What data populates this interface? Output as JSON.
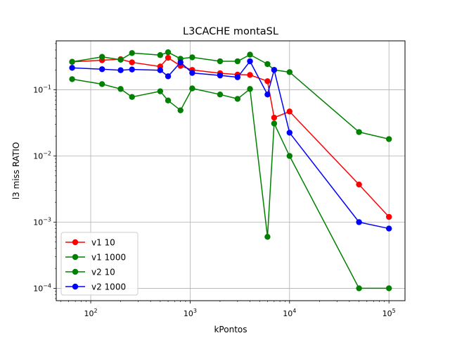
{
  "chart_data": {
    "type": "line",
    "title": "L3CACHE montaSL",
    "xlabel": "kPontos",
    "ylabel": "l3 miss RATIO",
    "xscale": "log",
    "yscale": "log",
    "xlim": [
      45,
      145000
    ],
    "ylim": [
      6.5e-05,
      0.55
    ],
    "grid": true,
    "legend_position": "lower-left",
    "x_ticks": [
      {
        "value": 100,
        "base": "10",
        "exp": "2"
      },
      {
        "value": 1000,
        "base": "10",
        "exp": "3"
      },
      {
        "value": 10000,
        "base": "10",
        "exp": "4"
      },
      {
        "value": 100000,
        "base": "10",
        "exp": "5"
      }
    ],
    "y_ticks": [
      {
        "value": 0.0001,
        "base": "10",
        "exp": "−4"
      },
      {
        "value": 0.001,
        "base": "10",
        "exp": "−3"
      },
      {
        "value": 0.01,
        "base": "10",
        "exp": "−2"
      },
      {
        "value": 0.1,
        "base": "10",
        "exp": "−1"
      }
    ],
    "series": [
      {
        "name": "v1 10",
        "color": "#ff0000",
        "x": [
          65,
          130,
          200,
          260,
          500,
          600,
          800,
          1050,
          2000,
          3000,
          4000,
          6000,
          7000,
          10000,
          50000,
          100000
        ],
        "y": [
          0.265,
          0.28,
          0.29,
          0.26,
          0.225,
          0.305,
          0.23,
          0.2,
          0.178,
          0.17,
          0.168,
          0.135,
          0.038,
          0.047,
          0.0037,
          0.0012
        ]
      },
      {
        "name": "v1 1000",
        "color": "#008000",
        "x": [
          65,
          130,
          200,
          260,
          500,
          600,
          800,
          1050,
          2000,
          3000,
          4000,
          6000,
          7000,
          10000,
          50000,
          100000
        ],
        "y": [
          0.265,
          0.315,
          0.285,
          0.36,
          0.335,
          0.37,
          0.295,
          0.31,
          0.27,
          0.27,
          0.34,
          0.245,
          0.2,
          0.185,
          0.023,
          0.018
        ]
      },
      {
        "name": "v2 10",
        "color": "#008000",
        "x": [
          65,
          130,
          200,
          260,
          500,
          600,
          800,
          1050,
          2000,
          3000,
          4000,
          6000,
          7000,
          10000,
          50000,
          100000
        ],
        "y": [
          0.145,
          0.122,
          0.103,
          0.078,
          0.095,
          0.069,
          0.049,
          0.105,
          0.085,
          0.073,
          0.103,
          0.0006,
          0.031,
          0.01,
          0.0001,
          0.0001
        ]
      },
      {
        "name": "v2 1000",
        "color": "#0000ff",
        "x": [
          65,
          130,
          200,
          260,
          500,
          600,
          800,
          1050,
          2000,
          3000,
          4000,
          6000,
          7000,
          10000,
          50000,
          100000
        ],
        "y": [
          0.215,
          0.205,
          0.198,
          0.203,
          0.198,
          0.16,
          0.26,
          0.18,
          0.165,
          0.155,
          0.27,
          0.085,
          0.2,
          0.0225,
          0.001,
          0.0008
        ]
      }
    ]
  }
}
